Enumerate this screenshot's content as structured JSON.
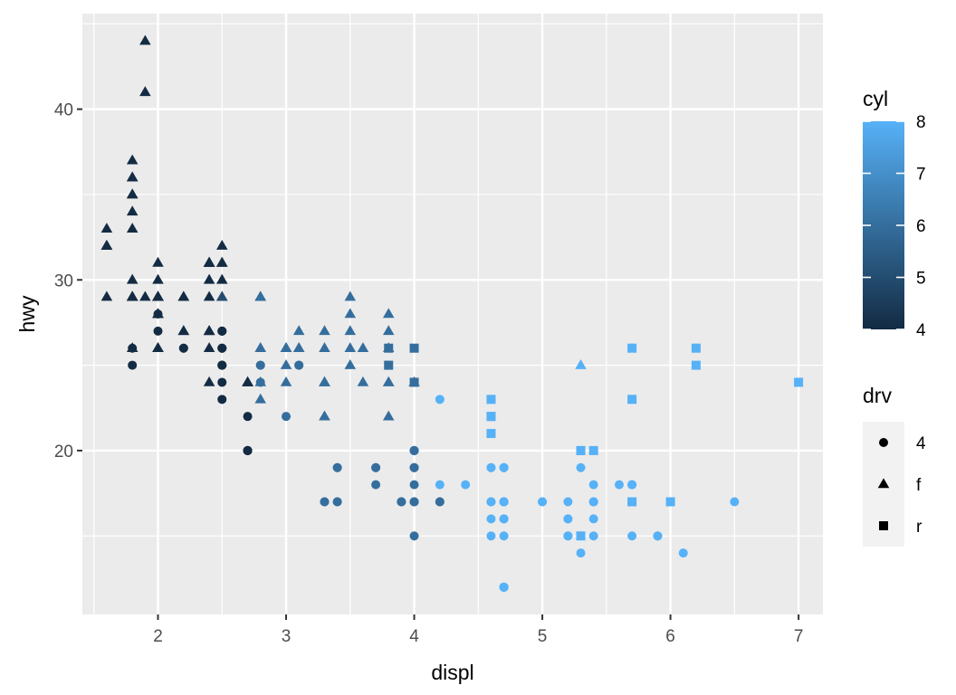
{
  "chart_data": {
    "type": "scatter",
    "xlabel": "displ",
    "ylabel": "hwy",
    "xlim": [
      1.41,
      7.19
    ],
    "ylim": [
      10.4,
      45.6
    ],
    "x_ticks": [
      2,
      3,
      4,
      5,
      6,
      7
    ],
    "y_ticks": [
      20,
      30,
      40
    ],
    "x_tick_labels": [
      "2",
      "3",
      "4",
      "5",
      "6",
      "7"
    ],
    "y_tick_labels": [
      "20",
      "30",
      "40"
    ],
    "grid": true,
    "colors": {
      "panel": "#EBEBEB",
      "grid": "#FFFFFF",
      "low": "#132B43",
      "high": "#56B1F7",
      "tick": "#333333",
      "tick_text": "#4D4D4D",
      "legend_key": "#F2F2F2"
    },
    "legend_color": {
      "title": "cyl",
      "range": [
        4,
        8
      ],
      "ticks": [
        4,
        5,
        6,
        7,
        8
      ],
      "tick_labels": [
        "4",
        "5",
        "6",
        "7",
        "8"
      ],
      "placement": "right"
    },
    "legend_shape": {
      "title": "drv",
      "entries": [
        {
          "label": "4",
          "shape": "circle"
        },
        {
          "label": "f",
          "shape": "triangle"
        },
        {
          "label": "r",
          "shape": "square"
        }
      ],
      "placement": "right"
    },
    "point_fields": [
      "displ",
      "hwy",
      "cyl",
      "drv"
    ],
    "points": [
      [
        1.8,
        29,
        4,
        "f"
      ],
      [
        1.8,
        29,
        4,
        "f"
      ],
      [
        2.0,
        31,
        4,
        "f"
      ],
      [
        2.0,
        30,
        4,
        "f"
      ],
      [
        2.8,
        26,
        6,
        "f"
      ],
      [
        2.8,
        26,
        6,
        "f"
      ],
      [
        3.1,
        27,
        6,
        "f"
      ],
      [
        1.8,
        26,
        4,
        "4"
      ],
      [
        1.8,
        25,
        4,
        "4"
      ],
      [
        2.0,
        28,
        4,
        "4"
      ],
      [
        2.0,
        27,
        4,
        "4"
      ],
      [
        2.8,
        25,
        6,
        "4"
      ],
      [
        2.8,
        25,
        6,
        "4"
      ],
      [
        3.1,
        25,
        6,
        "4"
      ],
      [
        3.1,
        25,
        6,
        "4"
      ],
      [
        2.8,
        24,
        6,
        "4"
      ],
      [
        3.1,
        25,
        6,
        "4"
      ],
      [
        4.2,
        23,
        8,
        "4"
      ],
      [
        5.3,
        20,
        8,
        "r"
      ],
      [
        5.3,
        15,
        8,
        "r"
      ],
      [
        5.3,
        20,
        8,
        "r"
      ],
      [
        5.7,
        17,
        8,
        "r"
      ],
      [
        6.0,
        17,
        8,
        "r"
      ],
      [
        5.7,
        26,
        8,
        "r"
      ],
      [
        5.7,
        23,
        8,
        "r"
      ],
      [
        6.2,
        26,
        8,
        "r"
      ],
      [
        6.2,
        25,
        8,
        "r"
      ],
      [
        7.0,
        24,
        8,
        "r"
      ],
      [
        5.3,
        19,
        8,
        "4"
      ],
      [
        5.3,
        14,
        8,
        "4"
      ],
      [
        5.7,
        15,
        8,
        "4"
      ],
      [
        6.5,
        17,
        8,
        "4"
      ],
      [
        2.4,
        27,
        4,
        "f"
      ],
      [
        2.4,
        30,
        4,
        "f"
      ],
      [
        3.1,
        26,
        6,
        "f"
      ],
      [
        3.5,
        29,
        6,
        "f"
      ],
      [
        3.6,
        26,
        6,
        "f"
      ],
      [
        2.4,
        24,
        4,
        "f"
      ],
      [
        3.0,
        24,
        6,
        "f"
      ],
      [
        3.3,
        22,
        6,
        "f"
      ],
      [
        3.3,
        24,
        6,
        "f"
      ],
      [
        3.3,
        24,
        6,
        "f"
      ],
      [
        3.3,
        22,
        6,
        "f"
      ],
      [
        3.3,
        24,
        6,
        "f"
      ],
      [
        3.8,
        24,
        6,
        "f"
      ],
      [
        3.8,
        24,
        6,
        "f"
      ],
      [
        3.8,
        22,
        6,
        "f"
      ],
      [
        4.0,
        24,
        6,
        "f"
      ],
      [
        3.7,
        19,
        6,
        "4"
      ],
      [
        3.7,
        18,
        6,
        "4"
      ],
      [
        3.9,
        17,
        6,
        "4"
      ],
      [
        3.9,
        17,
        6,
        "4"
      ],
      [
        4.7,
        19,
        8,
        "4"
      ],
      [
        4.7,
        19,
        8,
        "4"
      ],
      [
        4.7,
        12,
        8,
        "4"
      ],
      [
        5.2,
        17,
        8,
        "4"
      ],
      [
        5.2,
        15,
        8,
        "4"
      ],
      [
        3.9,
        17,
        6,
        "4"
      ],
      [
        4.7,
        17,
        8,
        "4"
      ],
      [
        4.7,
        12,
        8,
        "4"
      ],
      [
        4.7,
        17,
        8,
        "4"
      ],
      [
        5.2,
        16,
        8,
        "4"
      ],
      [
        5.7,
        18,
        8,
        "4"
      ],
      [
        5.9,
        15,
        8,
        "4"
      ],
      [
        4.7,
        16,
        8,
        "4"
      ],
      [
        4.7,
        12,
        8,
        "4"
      ],
      [
        4.7,
        17,
        8,
        "4"
      ],
      [
        4.7,
        17,
        8,
        "4"
      ],
      [
        4.7,
        16,
        8,
        "4"
      ],
      [
        4.7,
        12,
        8,
        "4"
      ],
      [
        5.2,
        15,
        8,
        "4"
      ],
      [
        5.2,
        16,
        8,
        "4"
      ],
      [
        5.7,
        17,
        8,
        "4"
      ],
      [
        5.9,
        15,
        8,
        "4"
      ],
      [
        4.6,
        17,
        8,
        "4"
      ],
      [
        5.4,
        17,
        8,
        "4"
      ],
      [
        5.4,
        18,
        8,
        "4"
      ],
      [
        4.0,
        17,
        6,
        "4"
      ],
      [
        4.0,
        19,
        6,
        "4"
      ],
      [
        4.0,
        17,
        6,
        "4"
      ],
      [
        4.0,
        19,
        6,
        "4"
      ],
      [
        4.6,
        19,
        8,
        "4"
      ],
      [
        5.0,
        17,
        8,
        "4"
      ],
      [
        4.2,
        17,
        6,
        "4"
      ],
      [
        4.2,
        17,
        6,
        "4"
      ],
      [
        4.6,
        17,
        8,
        "4"
      ],
      [
        4.6,
        16,
        8,
        "4"
      ],
      [
        4.6,
        17,
        8,
        "4"
      ],
      [
        5.4,
        15,
        8,
        "4"
      ],
      [
        5.4,
        17,
        8,
        "4"
      ],
      [
        3.8,
        26,
        6,
        "r"
      ],
      [
        3.8,
        25,
        6,
        "r"
      ],
      [
        4.0,
        26,
        6,
        "r"
      ],
      [
        4.0,
        24,
        6,
        "r"
      ],
      [
        4.6,
        21,
        8,
        "r"
      ],
      [
        4.6,
        22,
        8,
        "r"
      ],
      [
        4.6,
        23,
        8,
        "r"
      ],
      [
        4.6,
        22,
        8,
        "r"
      ],
      [
        5.4,
        20,
        8,
        "r"
      ],
      [
        1.6,
        33,
        4,
        "f"
      ],
      [
        1.6,
        32,
        4,
        "f"
      ],
      [
        1.6,
        32,
        4,
        "f"
      ],
      [
        1.6,
        29,
        4,
        "f"
      ],
      [
        1.6,
        32,
        4,
        "f"
      ],
      [
        1.8,
        34,
        4,
        "f"
      ],
      [
        1.8,
        36,
        4,
        "f"
      ],
      [
        1.8,
        36,
        4,
        "f"
      ],
      [
        2.0,
        29,
        4,
        "f"
      ],
      [
        2.4,
        26,
        4,
        "f"
      ],
      [
        2.4,
        27,
        4,
        "f"
      ],
      [
        2.5,
        30,
        4,
        "f"
      ],
      [
        2.5,
        31,
        4,
        "f"
      ],
      [
        3.3,
        26,
        6,
        "f"
      ],
      [
        2.0,
        26,
        4,
        "f"
      ],
      [
        2.0,
        29,
        4,
        "f"
      ],
      [
        2.0,
        26,
        4,
        "f"
      ],
      [
        2.0,
        29,
        4,
        "f"
      ],
      [
        2.7,
        24,
        4,
        "f"
      ],
      [
        2.7,
        24,
        4,
        "f"
      ],
      [
        2.7,
        24,
        4,
        "f"
      ],
      [
        3.0,
        22,
        6,
        "4"
      ],
      [
        3.7,
        19,
        6,
        "4"
      ],
      [
        4.0,
        20,
        6,
        "4"
      ],
      [
        4.7,
        17,
        8,
        "4"
      ],
      [
        4.7,
        12,
        8,
        "4"
      ],
      [
        4.7,
        19,
        8,
        "4"
      ],
      [
        5.7,
        18,
        8,
        "4"
      ],
      [
        6.1,
        14,
        8,
        "4"
      ],
      [
        4.0,
        15,
        6,
        "4"
      ],
      [
        4.2,
        18,
        8,
        "4"
      ],
      [
        4.4,
        18,
        8,
        "4"
      ],
      [
        4.6,
        15,
        8,
        "4"
      ],
      [
        5.4,
        17,
        8,
        "4"
      ],
      [
        5.4,
        16,
        8,
        "4"
      ],
      [
        5.4,
        17,
        8,
        "4"
      ],
      [
        4.0,
        17,
        6,
        "4"
      ],
      [
        4.0,
        19,
        6,
        "4"
      ],
      [
        4.6,
        19,
        8,
        "4"
      ],
      [
        5.0,
        17,
        8,
        "4"
      ],
      [
        2.4,
        29,
        4,
        "f"
      ],
      [
        2.4,
        27,
        4,
        "f"
      ],
      [
        2.5,
        31,
        4,
        "f"
      ],
      [
        2.5,
        32,
        4,
        "f"
      ],
      [
        3.5,
        27,
        6,
        "f"
      ],
      [
        3.5,
        26,
        6,
        "f"
      ],
      [
        3.0,
        26,
        6,
        "f"
      ],
      [
        3.0,
        25,
        6,
        "f"
      ],
      [
        3.5,
        25,
        6,
        "f"
      ],
      [
        3.3,
        17,
        6,
        "4"
      ],
      [
        3.3,
        17,
        6,
        "4"
      ],
      [
        4.0,
        20,
        6,
        "4"
      ],
      [
        5.6,
        18,
        8,
        "4"
      ],
      [
        3.1,
        26,
        6,
        "f"
      ],
      [
        3.8,
        26,
        6,
        "f"
      ],
      [
        3.8,
        27,
        6,
        "f"
      ],
      [
        3.8,
        28,
        6,
        "f"
      ],
      [
        5.3,
        25,
        8,
        "f"
      ],
      [
        2.5,
        25,
        4,
        "4"
      ],
      [
        2.5,
        24,
        4,
        "4"
      ],
      [
        2.5,
        27,
        4,
        "4"
      ],
      [
        2.5,
        25,
        4,
        "4"
      ],
      [
        2.5,
        26,
        4,
        "4"
      ],
      [
        2.5,
        23,
        4,
        "4"
      ],
      [
        2.2,
        26,
        4,
        "4"
      ],
      [
        2.2,
        26,
        4,
        "4"
      ],
      [
        2.5,
        26,
        4,
        "4"
      ],
      [
        2.5,
        26,
        4,
        "4"
      ],
      [
        2.5,
        25,
        4,
        "4"
      ],
      [
        2.5,
        27,
        4,
        "4"
      ],
      [
        2.5,
        25,
        4,
        "4"
      ],
      [
        2.5,
        27,
        4,
        "4"
      ],
      [
        2.7,
        20,
        4,
        "4"
      ],
      [
        2.7,
        20,
        4,
        "4"
      ],
      [
        3.4,
        19,
        6,
        "4"
      ],
      [
        3.4,
        17,
        6,
        "4"
      ],
      [
        4.0,
        20,
        6,
        "4"
      ],
      [
        4.7,
        17,
        8,
        "4"
      ],
      [
        2.2,
        29,
        4,
        "f"
      ],
      [
        2.2,
        27,
        4,
        "f"
      ],
      [
        2.4,
        31,
        4,
        "f"
      ],
      [
        2.4,
        31,
        4,
        "f"
      ],
      [
        3.0,
        26,
        6,
        "f"
      ],
      [
        3.0,
        26,
        6,
        "f"
      ],
      [
        3.5,
        28,
        6,
        "f"
      ],
      [
        2.2,
        27,
        4,
        "f"
      ],
      [
        2.2,
        29,
        4,
        "f"
      ],
      [
        2.4,
        31,
        4,
        "f"
      ],
      [
        2.4,
        31,
        4,
        "f"
      ],
      [
        3.0,
        26,
        6,
        "f"
      ],
      [
        3.0,
        26,
        6,
        "f"
      ],
      [
        3.3,
        27,
        6,
        "f"
      ],
      [
        1.8,
        30,
        4,
        "f"
      ],
      [
        1.8,
        33,
        4,
        "f"
      ],
      [
        1.8,
        35,
        4,
        "f"
      ],
      [
        1.8,
        37,
        4,
        "f"
      ],
      [
        1.8,
        35,
        4,
        "f"
      ],
      [
        4.7,
        15,
        8,
        "4"
      ],
      [
        5.7,
        18,
        8,
        "4"
      ],
      [
        2.7,
        20,
        4,
        "4"
      ],
      [
        2.7,
        20,
        4,
        "4"
      ],
      [
        2.7,
        22,
        4,
        "4"
      ],
      [
        3.4,
        17,
        6,
        "4"
      ],
      [
        3.4,
        19,
        6,
        "4"
      ],
      [
        4.0,
        18,
        6,
        "4"
      ],
      [
        4.0,
        20,
        6,
        "4"
      ],
      [
        2.0,
        29,
        4,
        "f"
      ],
      [
        2.0,
        26,
        4,
        "f"
      ],
      [
        2.8,
        29,
        6,
        "f"
      ],
      [
        1.9,
        29,
        4,
        "f"
      ],
      [
        2.0,
        29,
        4,
        "f"
      ],
      [
        2.0,
        28,
        4,
        "f"
      ],
      [
        2.0,
        29,
        4,
        "f"
      ],
      [
        2.0,
        29,
        4,
        "f"
      ],
      [
        2.5,
        29,
        5,
        "f"
      ],
      [
        2.5,
        29,
        5,
        "f"
      ],
      [
        2.8,
        23,
        6,
        "f"
      ],
      [
        2.8,
        24,
        6,
        "f"
      ],
      [
        1.9,
        44,
        4,
        "f"
      ],
      [
        1.9,
        41,
        4,
        "f"
      ],
      [
        1.8,
        29,
        4,
        "f"
      ],
      [
        1.8,
        26,
        4,
        "f"
      ],
      [
        2.0,
        28,
        4,
        "f"
      ],
      [
        2.0,
        29,
        4,
        "f"
      ],
      [
        1.8,
        29,
        4,
        "f"
      ],
      [
        1.8,
        29,
        4,
        "f"
      ],
      [
        2.0,
        29,
        4,
        "f"
      ],
      [
        2.0,
        28,
        4,
        "f"
      ],
      [
        2.8,
        29,
        6,
        "f"
      ],
      [
        2.8,
        29,
        6,
        "f"
      ],
      [
        3.6,
        24,
        6,
        "f"
      ]
    ]
  }
}
